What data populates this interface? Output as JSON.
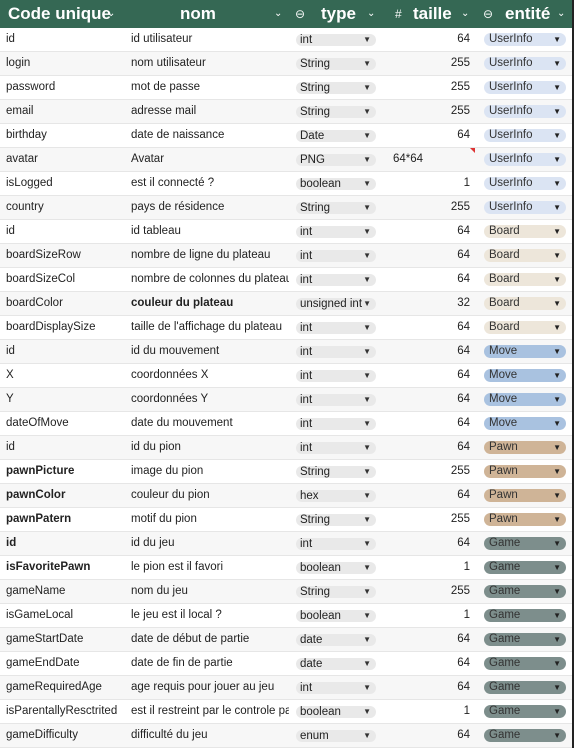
{
  "header": {
    "code_unique": "Code unique",
    "nom": "nom",
    "type": "type",
    "taille": "taille",
    "entite": "entité",
    "chevron_glyph": "⌄",
    "type_icon_glyph": "⊖",
    "taille_icon_glyph": "#",
    "entite_icon_glyph": "⊖"
  },
  "colors": {
    "header_bg": "#356854",
    "UserInfo": "#dbe4f3",
    "Board": "#ede6da",
    "Move": "#a9c2e0",
    "Pawn": "#cfb497",
    "Game": "#7d8e8c"
  },
  "rows": [
    {
      "code": "id",
      "nom": "id utilisateur",
      "type": "int",
      "taille": "64",
      "entite": "UserInfo"
    },
    {
      "code": "login",
      "nom": "nom utilisateur",
      "type": "String",
      "taille": "255",
      "entite": "UserInfo"
    },
    {
      "code": "password",
      "nom": "mot de passe",
      "type": "String",
      "taille": "255",
      "entite": "UserInfo"
    },
    {
      "code": "email",
      "nom": "adresse mail",
      "type": "String",
      "taille": "255",
      "entite": "UserInfo"
    },
    {
      "code": "birthday",
      "nom": "date de naissance",
      "type": "Date",
      "taille": "64",
      "entite": "UserInfo"
    },
    {
      "code": "avatar",
      "nom": "Avatar",
      "type": "PNG",
      "taille": "",
      "extra": "64*64",
      "entite": "UserInfo"
    },
    {
      "code": "isLogged",
      "nom": "est il connecté ?",
      "type": "boolean",
      "taille": "1",
      "entite": "UserInfo"
    },
    {
      "code": "country",
      "nom": "pays de résidence",
      "type": "String",
      "taille": "255",
      "entite": "UserInfo"
    },
    {
      "code": "id",
      "nom": "id tableau",
      "type": "int",
      "taille": "64",
      "entite": "Board"
    },
    {
      "code": "boardSizeRow",
      "nom": "nombre de ligne du plateau",
      "type": "int",
      "taille": "64",
      "entite": "Board"
    },
    {
      "code": "boardSizeCol",
      "nom": "nombre de colonnes du plateau",
      "type": "int",
      "taille": "64",
      "entite": "Board"
    },
    {
      "code": "boardColor",
      "nom": "couleur du plateau",
      "type": "unsigned  int",
      "taille": "32",
      "entite": "Board",
      "nom_bold": true
    },
    {
      "code": "boardDisplaySize",
      "nom": "taille de l'affichage du plateau",
      "type": "int",
      "taille": "64",
      "entite": "Board"
    },
    {
      "code": "id",
      "nom": "id du mouvement",
      "type": "int",
      "taille": "64",
      "entite": "Move"
    },
    {
      "code": "X",
      "nom": "coordonnées X",
      "type": "int",
      "taille": "64",
      "entite": "Move"
    },
    {
      "code": "Y",
      "nom": "coordonnées Y",
      "type": "int",
      "taille": "64",
      "entite": "Move"
    },
    {
      "code": "dateOfMove",
      "nom": "date du mouvement",
      "type": "int",
      "taille": "64",
      "entite": "Move"
    },
    {
      "code": "id",
      "nom": "id du pion",
      "type": "int",
      "taille": "64",
      "entite": "Pawn"
    },
    {
      "code": "pawnPicture",
      "nom": "image du pion",
      "type": "String",
      "taille": "255",
      "entite": "Pawn",
      "code_bold": true
    },
    {
      "code": "pawnColor",
      "nom": "couleur du pion",
      "type": "hex",
      "taille": "64",
      "entite": "Pawn",
      "code_bold": true
    },
    {
      "code": "pawnPatern",
      "nom": "motif du pion",
      "type": "String",
      "taille": "255",
      "entite": "Pawn",
      "code_bold": true
    },
    {
      "code": "id",
      "nom": "id du jeu",
      "type": "int",
      "taille": "64",
      "entite": "Game",
      "code_bold": true
    },
    {
      "code": "isFavoritePawn",
      "nom": "le pion est il favori",
      "type": "boolean",
      "taille": "1",
      "entite": "Game",
      "code_bold": true
    },
    {
      "code": "gameName",
      "nom": "nom du jeu",
      "type": "String",
      "taille": "255",
      "entite": "Game"
    },
    {
      "code": "isGameLocal",
      "nom": "le jeu est il local ?",
      "type": "boolean",
      "taille": "1",
      "entite": "Game"
    },
    {
      "code": "gameStartDate",
      "nom": "date de début de partie",
      "type": "date",
      "taille": "64",
      "entite": "Game"
    },
    {
      "code": "gameEndDate",
      "nom": "date de fin de partie",
      "type": "date",
      "taille": "64",
      "entite": "Game"
    },
    {
      "code": "gameRequiredAge",
      "nom": "age requis pour jouer au jeu",
      "type": "int",
      "taille": "64",
      "entite": "Game"
    },
    {
      "code": "isParentallyResctrited",
      "nom": "est il restreint par le controle parental",
      "type": "boolean",
      "taille": "1",
      "entite": "Game"
    },
    {
      "code": "gameDifficulty",
      "nom": "difficulté du jeu",
      "type": "enum",
      "taille": "64",
      "entite": "Game"
    }
  ]
}
